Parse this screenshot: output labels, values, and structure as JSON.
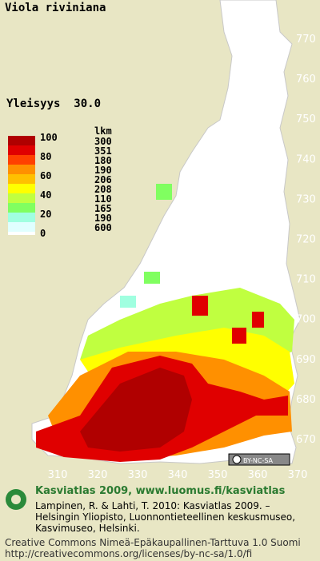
{
  "title": "Viola riviniana",
  "frequency": "Yleisyys  30.0",
  "legend": {
    "scale_labels": [
      100,
      80,
      60,
      40,
      20,
      0
    ],
    "count_header": "lkm",
    "counts": [
      300,
      351,
      180,
      190,
      206,
      208,
      110,
      165,
      190,
      600
    ]
  },
  "y_ticks": [
    770,
    760,
    750,
    740,
    730,
    720,
    710,
    700,
    690,
    680,
    670
  ],
  "x_ticks": [
    310,
    320,
    330,
    340,
    350,
    360,
    370
  ],
  "license_badge": "BY-NC-SA",
  "footer": {
    "heading": "Kasviatlas 2009, www.luomus.fi/kasviatlas",
    "citation": [
      "Lampinen, R. & Lahti, T. 2010: Kasviatlas 2009. –",
      "Helsingin Yliopisto, Luonnontieteellinen keskusmuseo,",
      "Kasvimuseo, Helsinki."
    ],
    "license": [
      "Creative Commons Nimeä-Epäkaupallinen-Tarttuva 1.0 Suomi",
      "http://creativecommons.org/licenses/by-nc-sa/1.0/fi"
    ]
  }
}
